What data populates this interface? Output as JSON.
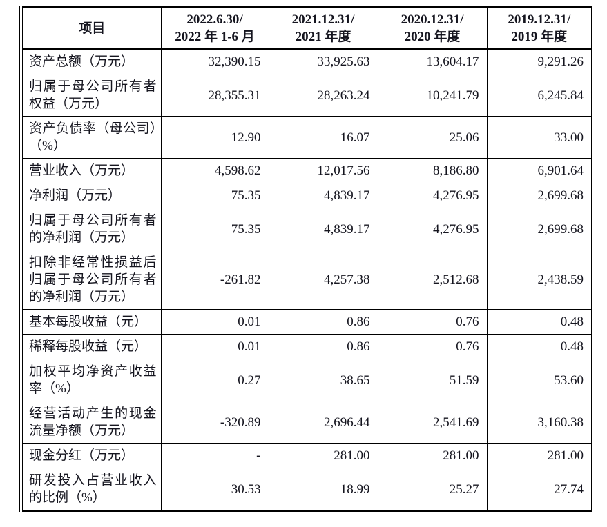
{
  "colors": {
    "border": "#000000",
    "text": "#15151f",
    "background": "#ffffff"
  },
  "table": {
    "header": {
      "item_col": "项目",
      "period_cols": [
        {
          "line1": "2022.6.30/",
          "line2": "2022 年 1-6 月"
        },
        {
          "line1": "2021.12.31/",
          "line2": "2021 年度"
        },
        {
          "line1": "2020.12.31/",
          "line2": "2020 年度"
        },
        {
          "line1": "2019.12.31/",
          "line2": "2019 年度"
        }
      ]
    },
    "rows": [
      {
        "label": "资产总额（万元）",
        "values": [
          "32,390.15",
          "33,925.63",
          "13,604.17",
          "9,291.26"
        ]
      },
      {
        "label": "归属于母公司所有者权益（万元）",
        "values": [
          "28,355.31",
          "28,263.24",
          "10,241.79",
          "6,245.84"
        ]
      },
      {
        "label": "资产负债率（母公司）（%）",
        "values": [
          "12.90",
          "16.07",
          "25.06",
          "33.00"
        ]
      },
      {
        "label": "营业收入（万元）",
        "values": [
          "4,598.62",
          "12,017.56",
          "8,186.80",
          "6,901.64"
        ]
      },
      {
        "label": "净利润（万元）",
        "values": [
          "75.35",
          "4,839.17",
          "4,276.95",
          "2,699.68"
        ]
      },
      {
        "label": "归属于母公司所有者的净利润（万元）",
        "values": [
          "75.35",
          "4,839.17",
          "4,276.95",
          "2,699.68"
        ]
      },
      {
        "label": "扣除非经常性损益后归属于母公司所有者的净利润（万元）",
        "values": [
          "-261.82",
          "4,257.38",
          "2,512.68",
          "2,438.59"
        ]
      },
      {
        "label": "基本每股收益（元）",
        "values": [
          "0.01",
          "0.86",
          "0.76",
          "0.48"
        ]
      },
      {
        "label": "稀释每股收益（元）",
        "values": [
          "0.01",
          "0.86",
          "0.76",
          "0.48"
        ]
      },
      {
        "label": "加权平均净资产收益率（%）",
        "values": [
          "0.27",
          "38.65",
          "51.59",
          "53.60"
        ]
      },
      {
        "label": "经营活动产生的现金流量净额（万元）",
        "values": [
          "-320.89",
          "2,696.44",
          "2,541.69",
          "3,160.38"
        ]
      },
      {
        "label": "现金分红（万元）",
        "values": [
          "-",
          "281.00",
          "281.00",
          "281.00"
        ]
      },
      {
        "label": "研发投入占营业收入的比例（%）",
        "values": [
          "30.53",
          "18.99",
          "25.27",
          "27.74"
        ]
      }
    ]
  }
}
